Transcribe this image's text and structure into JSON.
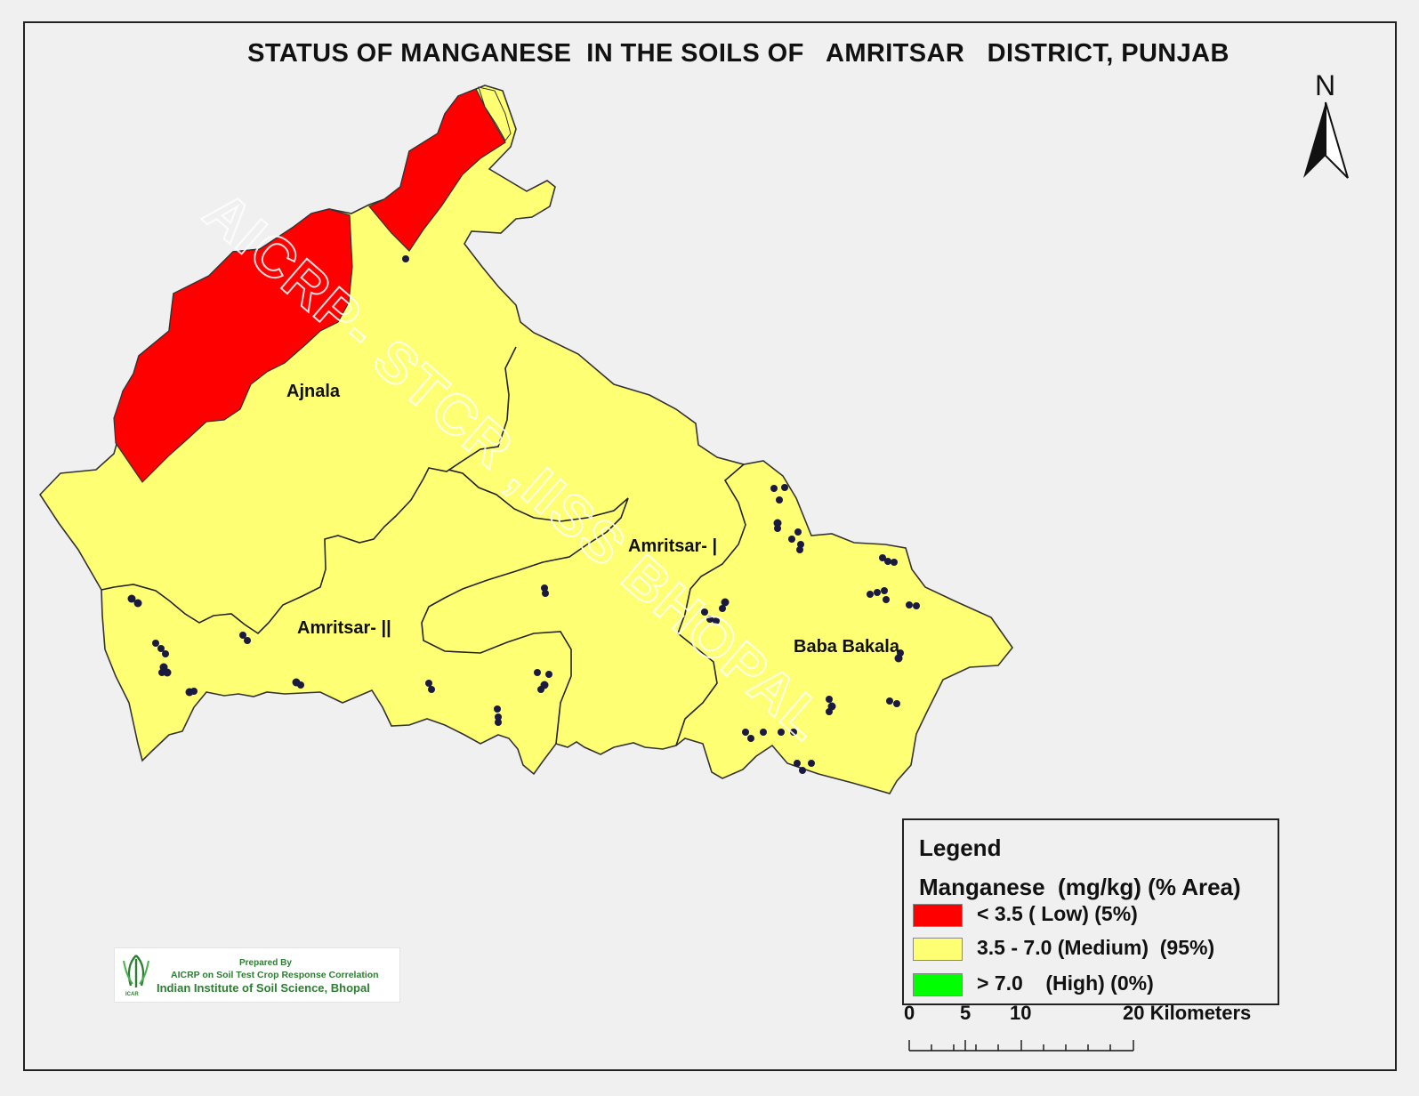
{
  "title": "STATUS OF MANGANESE  IN THE SOILS OF   AMRITSAR   DISTRICT, PUNJAB",
  "north_label": "N",
  "watermark": "AICRP- STCR ,IISS BHOPAL",
  "blocks": [
    {
      "name": "Ajnala"
    },
    {
      "name": "Amritsar- |"
    },
    {
      "name": "Amritsar- ||"
    },
    {
      "name": "Baba Bakala"
    }
  ],
  "legend": {
    "title": "Legend",
    "subtitle": "Manganese  (mg/kg) (% Area)",
    "items": [
      {
        "label": "< 3.5 ( Low) (5%)",
        "color": "#ff0000"
      },
      {
        "label": "3.5 - 7.0 (Medium)  (95%)",
        "color": "#ffff73"
      },
      {
        "label": "> 7.0    (High) (0%)",
        "color": "#00ff00"
      }
    ]
  },
  "scale_bar": {
    "ticks": [
      "0",
      "5",
      "10",
      "20 Kilometers"
    ]
  },
  "credit": {
    "prepared_by": "Prepared By",
    "line2": "AICRP on Soil Test Crop Response Correlation",
    "line3": "Indian Institute of Soil Science, Bhopal",
    "logo_text": "ICAR"
  },
  "colors": {
    "low": "#ff0000",
    "medium": "#ffff73",
    "high": "#00ff00",
    "sample_points": "#1a1a40"
  }
}
